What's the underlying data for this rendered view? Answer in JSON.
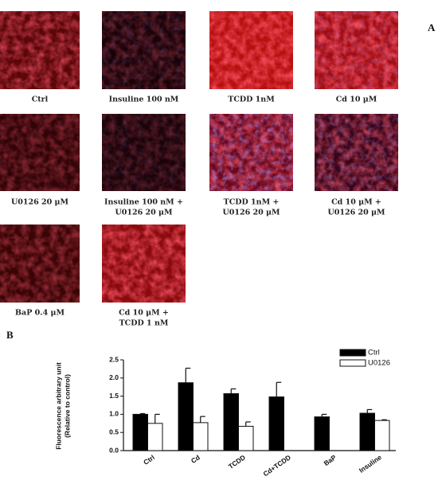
{
  "panel_labels": [
    "A",
    "B"
  ],
  "images": [
    {
      "label": [
        "Ctrl"
      ]
    },
    {
      "label": [
        "Insuline 100 nM"
      ]
    },
    {
      "label": [
        "TCDD 1nM"
      ]
    },
    {
      "label": [
        "Cd 10 μM"
      ]
    },
    {
      "label": [
        "U0126 20 μM"
      ]
    },
    {
      "label": [
        "Insuline 100 nM +",
        "U0126 20 μM"
      ]
    },
    {
      "label": [
        "TCDD 1nM +",
        "U0126 20 μM"
      ]
    },
    {
      "label": [
        "Cd 10 μM +",
        "U0126 20 μM"
      ]
    },
    {
      "label": [
        "BaP 0.4 μM"
      ]
    },
    {
      "label": [
        "Cd 10 μM +",
        "TCDD 1 nM"
      ]
    }
  ],
  "chart_data": {
    "type": "bar",
    "y_label": [
      "Fluorescence arbitrary unit",
      "(Relative to control)"
    ],
    "categories": [
      "Ctrl",
      "Cd",
      "TCDD",
      "Cd+TCDD",
      "BaP",
      "Insuline"
    ],
    "series": [
      {
        "name": "Ctrl",
        "color": "#000000",
        "values": [
          1.0,
          1.87,
          1.57,
          1.48,
          0.93,
          1.03
        ],
        "errors": [
          0.02,
          0.4,
          0.13,
          0.4,
          0.07,
          0.1
        ]
      },
      {
        "name": "U0126",
        "color": "#ffffff",
        "values": [
          0.75,
          0.77,
          0.67,
          null,
          null,
          0.83
        ],
        "errors": [
          0.25,
          0.17,
          0.12,
          null,
          null,
          0.02
        ]
      }
    ],
    "ylim": [
      0,
      2.5
    ],
    "yticks": [
      {
        "value": 0,
        "label": "0.0"
      },
      {
        "value": 0.5,
        "label": "0.5"
      },
      {
        "value": 1,
        "label": "1.0"
      },
      {
        "value": 1.5,
        "label": "1.5"
      },
      {
        "value": 2,
        "label": "2.0"
      },
      {
        "value": 2.5,
        "label": "2.5"
      }
    ],
    "legend": "top-right"
  }
}
